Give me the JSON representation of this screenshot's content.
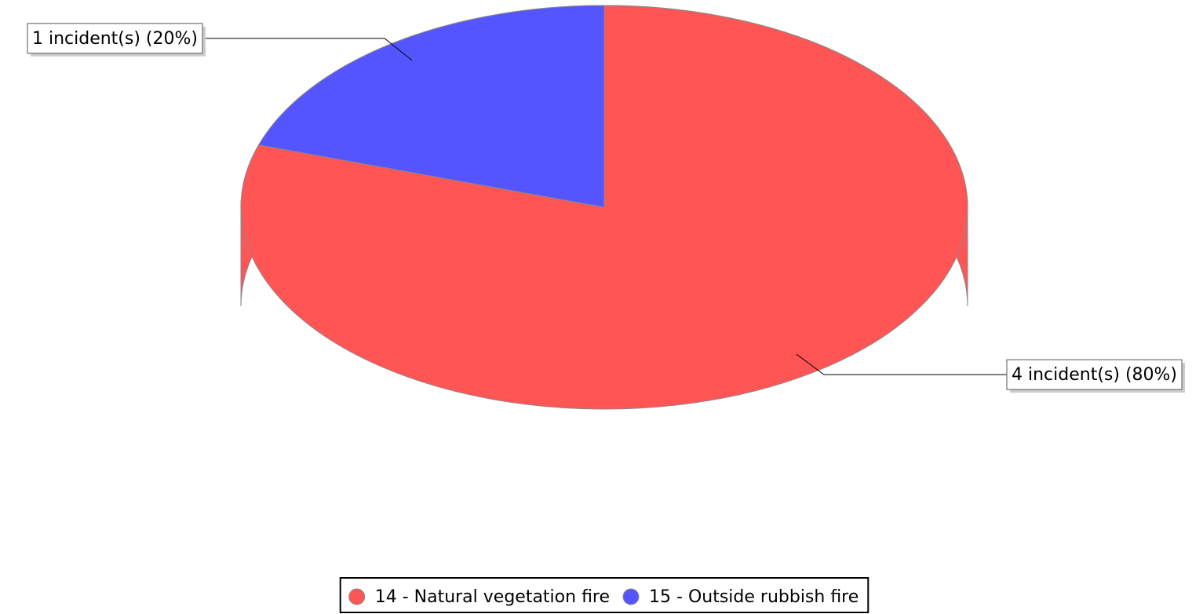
{
  "chart_data": {
    "type": "pie3d",
    "categories": [
      "14 - Natural vegetation fire",
      "15 - Outside rubbish fire"
    ],
    "values": [
      4,
      1
    ],
    "value_labels": [
      "4 incident(s) (80%)",
      "1 incident(s) (20%)"
    ],
    "colors": [
      "#ff5555",
      "#5555ff"
    ],
    "legend": "bottom"
  }
}
